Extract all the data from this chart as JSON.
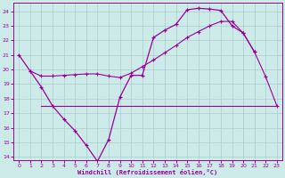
{
  "bg_color": "#cceae8",
  "line_color": "#990099",
  "grid_color": "#aacccc",
  "xlabel": "Windchill (Refroidissement éolien,°C)",
  "ylim": [
    13.8,
    24.6
  ],
  "xlim": [
    -0.5,
    23.5
  ],
  "yticks": [
    14,
    15,
    16,
    17,
    18,
    19,
    20,
    21,
    22,
    23,
    24
  ],
  "xticks": [
    0,
    1,
    2,
    3,
    4,
    5,
    6,
    7,
    8,
    9,
    10,
    11,
    12,
    13,
    14,
    15,
    16,
    17,
    18,
    19,
    20,
    21,
    22,
    23
  ],
  "c1x": [
    0,
    1,
    2,
    3,
    4,
    5,
    6,
    7,
    8,
    9,
    10,
    11,
    12,
    13,
    14,
    15,
    16,
    17,
    18,
    19,
    20,
    21
  ],
  "c1y": [
    21.0,
    19.9,
    18.8,
    17.5,
    16.6,
    15.8,
    14.8,
    13.7,
    15.2,
    18.1,
    19.6,
    19.6,
    22.2,
    22.7,
    23.1,
    24.1,
    24.2,
    24.15,
    24.05,
    23.0,
    22.5,
    21.2
  ],
  "c2x": [
    2,
    3,
    4,
    5,
    6,
    7,
    8,
    9,
    10,
    11,
    12,
    13,
    14,
    15,
    16,
    17,
    18,
    19,
    20,
    21,
    22,
    23
  ],
  "c2y": [
    17.5,
    17.5,
    17.5,
    17.5,
    17.5,
    17.5,
    17.5,
    17.5,
    17.5,
    17.5,
    17.5,
    17.5,
    17.5,
    17.5,
    17.5,
    17.5,
    17.5,
    17.5,
    17.5,
    17.5,
    17.5,
    17.5
  ],
  "c3x": [
    1,
    2,
    3,
    4,
    5,
    6,
    7,
    8,
    9,
    10,
    11,
    12,
    13,
    14,
    15,
    16,
    17,
    18,
    19,
    20,
    21,
    22,
    23
  ],
  "c3y": [
    19.9,
    19.55,
    19.55,
    19.6,
    19.65,
    19.7,
    19.7,
    19.55,
    19.45,
    19.75,
    20.2,
    20.65,
    21.15,
    21.65,
    22.2,
    22.6,
    23.0,
    23.3,
    23.3,
    22.5,
    21.2,
    19.5,
    17.5
  ]
}
